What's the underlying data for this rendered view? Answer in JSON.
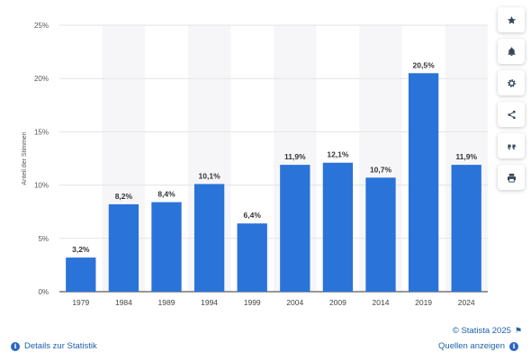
{
  "chart_data": {
    "type": "bar",
    "categories": [
      "1979",
      "1984",
      "1989",
      "1994",
      "1999",
      "2004",
      "2009",
      "2014",
      "2019",
      "2024"
    ],
    "values": [
      3.2,
      8.2,
      8.4,
      10.1,
      6.4,
      11.9,
      12.1,
      10.7,
      20.5,
      11.9
    ],
    "value_labels": [
      "3,2%",
      "8,2%",
      "8,4%",
      "10,1%",
      "6,4%",
      "11,9%",
      "12,1%",
      "10,7%",
      "20,5%",
      "11,9%"
    ],
    "ylabel": "Anteil der Stimmen",
    "ylim": [
      0,
      25
    ],
    "yticks": [
      0,
      5,
      10,
      15,
      20,
      25
    ],
    "ytick_labels": [
      "0%",
      "5%",
      "10%",
      "15%",
      "20%",
      "25%"
    ],
    "grid": true,
    "bar_color": "#2a73d9",
    "alt_band_color": "#f6f6f9"
  },
  "sidebar": {
    "buttons": [
      {
        "icon": "star-icon"
      },
      {
        "icon": "bell-icon"
      },
      {
        "icon": "gear-icon"
      },
      {
        "icon": "share-icon"
      },
      {
        "icon": "quote-icon"
      },
      {
        "icon": "print-icon"
      }
    ]
  },
  "footer": {
    "copyright": "© Statista 2025",
    "details_link": "Details zur Statistik",
    "sources_link": "Quellen anzeigen"
  }
}
